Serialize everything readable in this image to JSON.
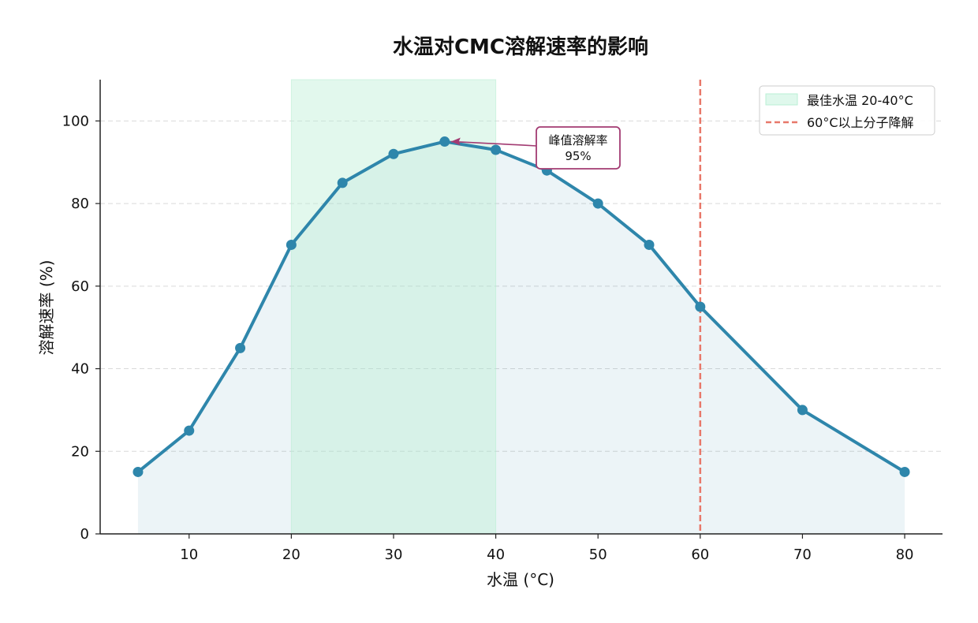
{
  "chart_data": {
    "type": "line",
    "title": "水温对CMC溶解速率的影响",
    "xlabel": "水温 (°C)",
    "ylabel": "溶解速率 (%)",
    "x": [
      5,
      10,
      15,
      20,
      25,
      30,
      35,
      40,
      45,
      50,
      55,
      60,
      70,
      80
    ],
    "series": [
      {
        "values": [
          15,
          25,
          45,
          70,
          85,
          92,
          95,
          93,
          88,
          80,
          70,
          55,
          30,
          15
        ],
        "color": "#2e86ab"
      }
    ],
    "xlim": [
      1.3,
      83.7
    ],
    "ylim": [
      0,
      110
    ],
    "xticks": [
      10,
      20,
      30,
      40,
      50,
      60,
      70,
      80
    ],
    "yticks": [
      0,
      20,
      40,
      60,
      80,
      100
    ],
    "grid": "y-dashed",
    "fill_under_line": true,
    "optimal_band": {
      "x0": 20,
      "x1": 40,
      "label": "最佳水温 20-40°C",
      "color": "#b9efd4"
    },
    "threshold_line": {
      "x": 60,
      "label": "60°C以上分子降解",
      "color": "#e8786a",
      "style": "dashed"
    },
    "annotation": {
      "x": 35,
      "y": 95,
      "text_lines": [
        "峰值溶解率",
        "95%"
      ],
      "color": "#a23b72"
    },
    "legend_position": "top-right"
  }
}
